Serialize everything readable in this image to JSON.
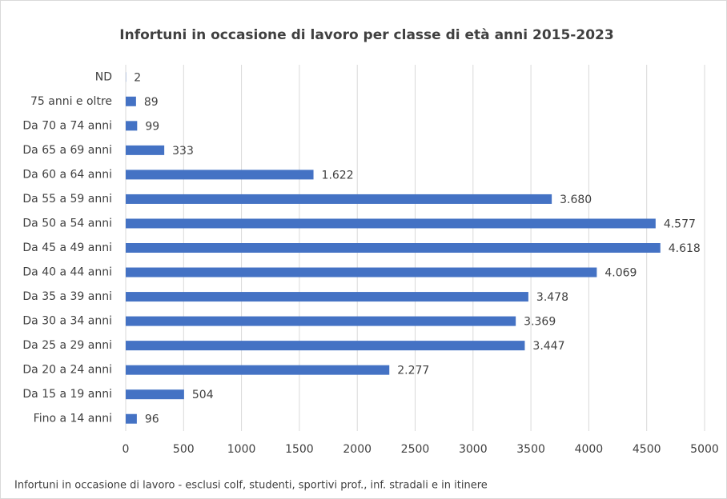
{
  "chart_data": {
    "type": "bar",
    "orientation": "horizontal",
    "title": "Infortuni in occasione di lavoro per classe di età anni 2015-2023",
    "note": "Infortuni in occasione di lavoro - esclusi colf, studenti, sportivi prof., inf. stradali e in itinere",
    "categories": [
      "ND",
      "75 anni e oltre",
      "Da 70 a 74 anni",
      "Da 65 a 69 anni",
      "Da 60 a 64 anni",
      "Da 55 a 59 anni",
      "Da 50 a 54 anni",
      "Da 45 a 49 anni",
      "Da 40 a 44 anni",
      "Da 35 a 39 anni",
      "Da 30 a 34 anni",
      "Da 25 a 29 anni",
      "Da 20 a 24 anni",
      "Da 15 a 19 anni",
      "Fino a 14 anni"
    ],
    "values": [
      2,
      89,
      99,
      333,
      1622,
      3680,
      4577,
      4618,
      4069,
      3478,
      3369,
      3447,
      2277,
      504,
      96
    ],
    "value_labels": [
      "2",
      "89",
      "99",
      "333",
      "1.622",
      "3.680",
      "4.577",
      "4.618",
      "4.069",
      "3.478",
      "3.369",
      "3.447",
      "2.277",
      "504",
      "96"
    ],
    "color": "#4472c4",
    "xlim": [
      0,
      5000
    ],
    "xticks": [
      0,
      500,
      1000,
      1500,
      2000,
      2500,
      3000,
      3500,
      4000,
      4500,
      5000
    ],
    "grid": true
  }
}
